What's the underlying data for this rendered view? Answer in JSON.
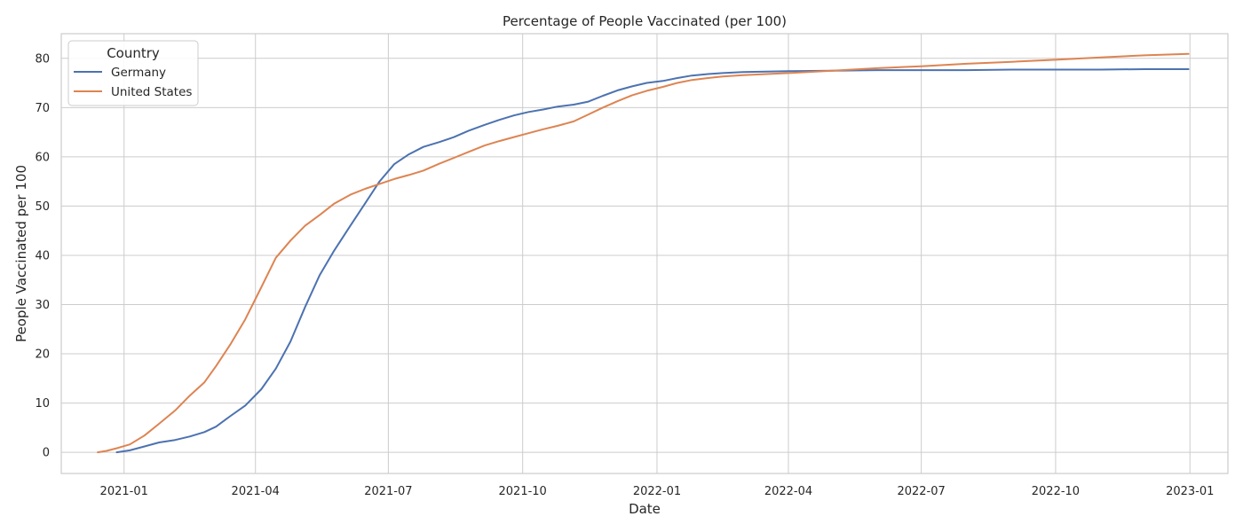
{
  "chart_data": {
    "type": "line",
    "title": "Percentage of People Vaccinated (per 100)",
    "xlabel": "Date",
    "ylabel": "People Vaccinated per 100",
    "xlim": [
      "2020-11-19",
      "2023-01-27"
    ],
    "ylim": [
      -4.3,
      85
    ],
    "x_ticks": [
      "2021-01-01",
      "2021-04-01",
      "2021-07-01",
      "2021-10-01",
      "2022-01-01",
      "2022-04-01",
      "2022-07-01",
      "2022-10-01",
      "2023-01-01"
    ],
    "x_tick_labels": [
      "2021-01",
      "2021-04",
      "2021-07",
      "2021-10",
      "2022-01",
      "2022-04",
      "2022-07",
      "2022-10",
      "2023-01"
    ],
    "y_ticks": [
      0,
      10,
      20,
      30,
      40,
      50,
      60,
      70,
      80
    ],
    "y_tick_labels": [
      "0",
      "10",
      "20",
      "30",
      "40",
      "50",
      "60",
      "70",
      "80"
    ],
    "grid": true,
    "legend": {
      "title": "Country",
      "placement": "top-left"
    },
    "series": [
      {
        "name": "Germany",
        "color": "#4c72b0",
        "points": [
          [
            "2020-12-27",
            0.0
          ],
          [
            "2021-01-05",
            0.4
          ],
          [
            "2021-01-15",
            1.2
          ],
          [
            "2021-01-25",
            2.0
          ],
          [
            "2021-02-05",
            2.5
          ],
          [
            "2021-02-15",
            3.2
          ],
          [
            "2021-02-25",
            4.1
          ],
          [
            "2021-03-05",
            5.2
          ],
          [
            "2021-03-15",
            7.4
          ],
          [
            "2021-03-25",
            9.5
          ],
          [
            "2021-04-05",
            12.8
          ],
          [
            "2021-04-15",
            17.0
          ],
          [
            "2021-04-25",
            22.5
          ],
          [
            "2021-05-05",
            29.5
          ],
          [
            "2021-05-15",
            36.0
          ],
          [
            "2021-05-25",
            41.0
          ],
          [
            "2021-06-05",
            46.0
          ],
          [
            "2021-06-15",
            50.5
          ],
          [
            "2021-06-25",
            55.0
          ],
          [
            "2021-07-05",
            58.5
          ],
          [
            "2021-07-15",
            60.5
          ],
          [
            "2021-07-25",
            62.0
          ],
          [
            "2021-08-05",
            63.0
          ],
          [
            "2021-08-15",
            64.0
          ],
          [
            "2021-08-25",
            65.3
          ],
          [
            "2021-09-05",
            66.5
          ],
          [
            "2021-09-15",
            67.5
          ],
          [
            "2021-09-25",
            68.4
          ],
          [
            "2021-10-05",
            69.1
          ],
          [
            "2021-10-15",
            69.6
          ],
          [
            "2021-10-25",
            70.2
          ],
          [
            "2021-11-05",
            70.6
          ],
          [
            "2021-11-15",
            71.2
          ],
          [
            "2021-11-25",
            72.4
          ],
          [
            "2021-12-05",
            73.5
          ],
          [
            "2021-12-15",
            74.3
          ],
          [
            "2021-12-25",
            75.0
          ],
          [
            "2022-01-05",
            75.4
          ],
          [
            "2022-01-15",
            76.0
          ],
          [
            "2022-01-25",
            76.5
          ],
          [
            "2022-02-05",
            76.8
          ],
          [
            "2022-02-15",
            77.0
          ],
          [
            "2022-03-01",
            77.2
          ],
          [
            "2022-04-01",
            77.4
          ],
          [
            "2022-05-01",
            77.5
          ],
          [
            "2022-06-01",
            77.6
          ],
          [
            "2022-07-01",
            77.6
          ],
          [
            "2022-08-01",
            77.6
          ],
          [
            "2022-09-01",
            77.7
          ],
          [
            "2022-10-01",
            77.7
          ],
          [
            "2022-11-01",
            77.7
          ],
          [
            "2022-12-01",
            77.8
          ],
          [
            "2022-12-31",
            77.8
          ]
        ]
      },
      {
        "name": "United States",
        "color": "#dd8452",
        "points": [
          [
            "2020-12-14",
            0.0
          ],
          [
            "2020-12-20",
            0.3
          ],
          [
            "2020-12-28",
            0.9
          ],
          [
            "2021-01-05",
            1.6
          ],
          [
            "2021-01-15",
            3.4
          ],
          [
            "2021-01-25",
            5.8
          ],
          [
            "2021-02-05",
            8.5
          ],
          [
            "2021-02-15",
            11.5
          ],
          [
            "2021-02-25",
            14.2
          ],
          [
            "2021-03-05",
            17.5
          ],
          [
            "2021-03-15",
            22.0
          ],
          [
            "2021-03-25",
            27.0
          ],
          [
            "2021-04-05",
            33.5
          ],
          [
            "2021-04-15",
            39.5
          ],
          [
            "2021-04-25",
            43.0
          ],
          [
            "2021-05-05",
            46.0
          ],
          [
            "2021-05-15",
            48.2
          ],
          [
            "2021-05-25",
            50.5
          ],
          [
            "2021-06-05",
            52.3
          ],
          [
            "2021-06-15",
            53.5
          ],
          [
            "2021-06-25",
            54.5
          ],
          [
            "2021-07-05",
            55.5
          ],
          [
            "2021-07-15",
            56.3
          ],
          [
            "2021-07-25",
            57.2
          ],
          [
            "2021-08-05",
            58.6
          ],
          [
            "2021-08-15",
            59.8
          ],
          [
            "2021-08-25",
            61.0
          ],
          [
            "2021-09-05",
            62.3
          ],
          [
            "2021-09-15",
            63.2
          ],
          [
            "2021-09-25",
            64.0
          ],
          [
            "2021-10-05",
            64.8
          ],
          [
            "2021-10-15",
            65.6
          ],
          [
            "2021-10-25",
            66.3
          ],
          [
            "2021-11-05",
            67.2
          ],
          [
            "2021-11-15",
            68.6
          ],
          [
            "2021-11-25",
            70.0
          ],
          [
            "2021-12-05",
            71.3
          ],
          [
            "2021-12-15",
            72.5
          ],
          [
            "2021-12-25",
            73.4
          ],
          [
            "2022-01-05",
            74.2
          ],
          [
            "2022-01-15",
            75.0
          ],
          [
            "2022-01-25",
            75.6
          ],
          [
            "2022-02-05",
            76.0
          ],
          [
            "2022-02-15",
            76.3
          ],
          [
            "2022-03-01",
            76.6
          ],
          [
            "2022-04-01",
            77.0
          ],
          [
            "2022-05-01",
            77.5
          ],
          [
            "2022-06-01",
            78.0
          ],
          [
            "2022-07-01",
            78.4
          ],
          [
            "2022-08-01",
            78.9
          ],
          [
            "2022-09-01",
            79.3
          ],
          [
            "2022-10-01",
            79.7
          ],
          [
            "2022-11-01",
            80.2
          ],
          [
            "2022-12-01",
            80.6
          ],
          [
            "2022-12-31",
            80.9
          ]
        ]
      }
    ]
  }
}
